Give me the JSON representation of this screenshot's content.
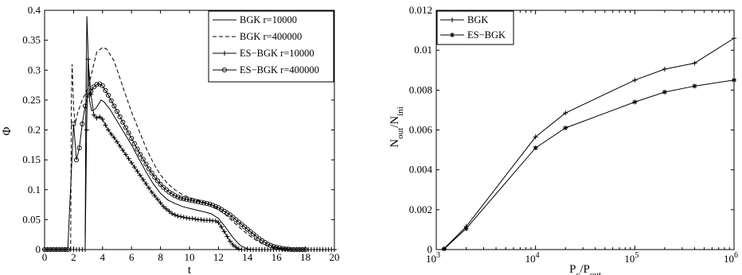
{
  "chart_data": [
    {
      "type": "line",
      "xlabel": "t",
      "ylabel": "Φ",
      "xlim": [
        0,
        20
      ],
      "ylim": [
        0,
        0.4
      ],
      "xticks": [
        "0",
        "2",
        "4",
        "6",
        "8",
        "10",
        "12",
        "14",
        "16",
        "18",
        "20"
      ],
      "yticks": [
        "0",
        "0.05",
        "0.1",
        "0.15",
        "0.2",
        "0.25",
        "0.3",
        "0.35",
        "0.4"
      ],
      "legend_position": "top-right",
      "series": [
        {
          "name": "BGK r=10000",
          "style": "solid",
          "marker": "none",
          "x": [
            0,
            2.8,
            2.85,
            2.92,
            3.0,
            3.1,
            3.25,
            3.5,
            3.7,
            3.9,
            4.1,
            4.5,
            5,
            5.5,
            6,
            6.5,
            7,
            7.5,
            8,
            8.5,
            9,
            9.5,
            10,
            10.5,
            11,
            11.5,
            12,
            12.5,
            13,
            13.5,
            14,
            14.5,
            15,
            20
          ],
          "values": [
            0,
            0,
            0.25,
            0.39,
            0.33,
            0.25,
            0.232,
            0.235,
            0.242,
            0.25,
            0.247,
            0.235,
            0.215,
            0.195,
            0.175,
            0.152,
            0.13,
            0.11,
            0.094,
            0.083,
            0.077,
            0.072,
            0.069,
            0.066,
            0.063,
            0.06,
            0.052,
            0.037,
            0.02,
            0.007,
            0.001,
            0,
            0,
            0
          ]
        },
        {
          "name": "BGK r=400000",
          "style": "dashed",
          "marker": "none",
          "x": [
            0,
            1.8,
            1.85,
            1.9,
            2.0,
            2.1,
            2.3,
            2.6,
            3.0,
            3.3,
            3.6,
            4.0,
            4.3,
            4.8,
            5.5,
            6,
            6.5,
            7,
            7.5,
            8,
            8.5,
            9,
            9.5,
            10,
            10.5,
            11,
            11.5,
            12,
            12.5,
            13,
            13.5,
            14,
            14.5,
            15,
            15.5,
            16,
            16.5,
            17,
            20
          ],
          "values": [
            0,
            0,
            0.25,
            0.31,
            0.24,
            0.21,
            0.23,
            0.25,
            0.27,
            0.3,
            0.33,
            0.338,
            0.335,
            0.315,
            0.265,
            0.23,
            0.2,
            0.17,
            0.145,
            0.125,
            0.11,
            0.1,
            0.092,
            0.087,
            0.083,
            0.079,
            0.074,
            0.067,
            0.058,
            0.047,
            0.036,
            0.026,
            0.017,
            0.01,
            0.005,
            0.002,
            0.001,
            0,
            0
          ]
        },
        {
          "name": "ES−BGK r=10000",
          "style": "solid",
          "marker": "plus",
          "x": [
            0,
            0.2,
            0.4,
            0.6,
            0.8,
            1.0,
            1.2,
            1.4,
            1.6,
            1.8,
            2.0,
            2.2,
            2.4,
            2.6,
            2.8,
            2.9,
            3.0,
            3.2,
            3.4,
            3.6,
            3.8,
            4.0,
            4.2,
            4.4,
            4.6,
            4.8,
            5.0,
            5.2,
            5.4,
            5.6,
            5.8,
            6.0,
            6.2,
            6.4,
            6.6,
            6.8,
            7.0,
            7.2,
            7.4,
            7.6,
            7.8,
            8.0,
            8.2,
            8.4,
            8.6,
            8.8,
            9.0,
            9.2,
            9.4,
            9.6,
            9.8,
            10.0,
            10.2,
            10.4,
            10.6,
            10.8,
            11.0,
            11.2,
            11.4,
            11.6,
            11.8,
            12.0,
            12.2,
            12.4,
            12.6,
            12.8,
            13.0,
            13.2,
            13.4,
            13.6,
            13.8,
            14.0,
            14.2,
            14.4,
            14.6,
            14.8,
            15.0,
            15.2,
            15.4,
            15.6,
            15.8,
            16.0,
            16.2,
            16.4,
            16.6,
            16.8,
            17.0,
            17.2,
            17.4,
            17.6,
            17.8,
            18.0,
            18.2,
            18.4,
            18.6,
            18.8,
            19.0,
            19.2,
            19.4,
            19.6,
            19.8,
            20.0
          ],
          "values": [
            0,
            0,
            0,
            0,
            0,
            0,
            0,
            0,
            0,
            0,
            0,
            0,
            0,
            0,
            0,
            0.2,
            0.318,
            0.26,
            0.225,
            0.22,
            0.222,
            0.218,
            0.208,
            0.2,
            0.193,
            0.187,
            0.18,
            0.173,
            0.166,
            0.159,
            0.152,
            0.145,
            0.138,
            0.131,
            0.124,
            0.117,
            0.11,
            0.103,
            0.096,
            0.09,
            0.084,
            0.078,
            0.072,
            0.068,
            0.064,
            0.06,
            0.058,
            0.056,
            0.055,
            0.054,
            0.053,
            0.052,
            0.052,
            0.051,
            0.05,
            0.05,
            0.049,
            0.049,
            0.049,
            0.048,
            0.048,
            0.045,
            0.038,
            0.03,
            0.022,
            0.014,
            0.008,
            0.004,
            0.001,
            0,
            0,
            0,
            0,
            0,
            0,
            0,
            0,
            0,
            0,
            0,
            0,
            0,
            0,
            0,
            0,
            0,
            0,
            0,
            0,
            0,
            0,
            0,
            0,
            0,
            0,
            0,
            0,
            0,
            0,
            0,
            0,
            0
          ]
        },
        {
          "name": "ES−BGK r=400000",
          "style": "solid",
          "marker": "circle",
          "x": [
            0,
            0.2,
            0.4,
            0.6,
            0.8,
            1.0,
            1.2,
            1.4,
            1.6,
            2.0,
            2.2,
            2.4,
            2.6,
            2.8,
            3.0,
            3.2,
            3.4,
            3.6,
            3.8,
            4.0,
            4.2,
            4.4,
            4.6,
            4.8,
            5.0,
            5.2,
            5.4,
            5.6,
            5.8,
            6.0,
            6.2,
            6.4,
            6.6,
            6.8,
            7.0,
            7.2,
            7.4,
            7.6,
            7.8,
            8.0,
            8.2,
            8.4,
            8.6,
            8.8,
            9.0,
            9.2,
            9.4,
            9.6,
            9.8,
            10.0,
            10.2,
            10.4,
            10.6,
            10.8,
            11.0,
            11.2,
            11.4,
            11.6,
            11.8,
            12.0,
            12.2,
            12.4,
            12.6,
            12.8,
            13.0,
            13.2,
            13.4,
            13.6,
            13.8,
            14.0,
            14.2,
            14.4,
            14.6,
            14.8,
            15.0,
            15.2,
            15.4,
            15.6,
            15.8,
            16.0,
            16.2,
            16.4,
            16.6,
            16.8,
            17.0,
            17.2,
            17.4,
            17.6,
            17.8,
            18.0
          ],
          "values": [
            0,
            0,
            0,
            0,
            0,
            0,
            0,
            0,
            0,
            0.21,
            0.15,
            0.17,
            0.21,
            0.24,
            0.258,
            0.265,
            0.272,
            0.276,
            0.277,
            0.274,
            0.266,
            0.258,
            0.249,
            0.24,
            0.231,
            0.222,
            0.213,
            0.204,
            0.195,
            0.186,
            0.177,
            0.168,
            0.159,
            0.151,
            0.143,
            0.135,
            0.128,
            0.121,
            0.115,
            0.109,
            0.104,
            0.1,
            0.096,
            0.093,
            0.09,
            0.088,
            0.086,
            0.085,
            0.084,
            0.083,
            0.082,
            0.081,
            0.08,
            0.079,
            0.078,
            0.077,
            0.076,
            0.074,
            0.072,
            0.07,
            0.067,
            0.064,
            0.061,
            0.058,
            0.054,
            0.05,
            0.046,
            0.042,
            0.038,
            0.034,
            0.03,
            0.026,
            0.022,
            0.018,
            0.015,
            0.012,
            0.009,
            0.007,
            0.005,
            0.004,
            0.003,
            0.002,
            0.001,
            0.001,
            0,
            0,
            0,
            0,
            0,
            0
          ]
        }
      ]
    },
    {
      "type": "line",
      "xlabel": "P",
      "xlabel_sub1": "c",
      "xlabel_mid": "/P",
      "xlabel_sub2": "out",
      "ylabel": "N",
      "ylabel_sub1": "out",
      "ylabel_mid": "/N",
      "ylabel_sub2": "ini",
      "xscale": "log",
      "xlim": [
        1000,
        1000000
      ],
      "ylim": [
        0,
        0.012
      ],
      "xticks": [
        {
          "base": "10",
          "exp": "3"
        },
        {
          "base": "10",
          "exp": "4"
        },
        {
          "base": "10",
          "exp": "5"
        },
        {
          "base": "10",
          "exp": "6"
        }
      ],
      "yticks": [
        "0",
        "0.002",
        "0.004",
        "0.006",
        "0.008",
        "0.01",
        "0.012"
      ],
      "legend_position": "top-left",
      "series": [
        {
          "name": "BGK",
          "marker": "plus",
          "x": [
            1200,
            2000,
            10000,
            20000,
            100000,
            200000,
            400000,
            1000000
          ],
          "values": [
            5e-05,
            0.00115,
            0.00565,
            0.00685,
            0.0085,
            0.00905,
            0.00935,
            0.0106
          ]
        },
        {
          "name": "ES−BGK",
          "marker": "star",
          "x": [
            1200,
            2000,
            10000,
            20000,
            100000,
            200000,
            400000,
            1000000
          ],
          "values": [
            3e-05,
            0.00105,
            0.0051,
            0.0061,
            0.0074,
            0.0079,
            0.0082,
            0.0085
          ]
        }
      ]
    }
  ]
}
